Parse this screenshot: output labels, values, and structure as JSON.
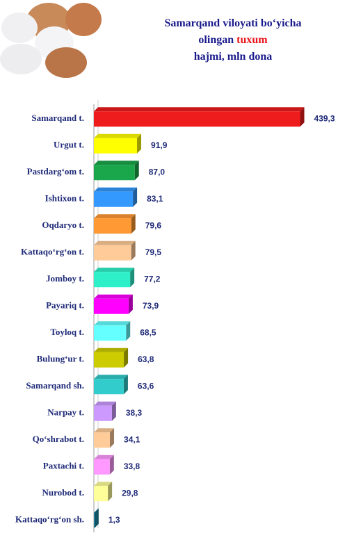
{
  "chart_data": {
    "type": "bar3d_horizontal",
    "title": {
      "line1": "Samarqand viloyati bo‘yicha",
      "line2": "olingan",
      "highlight": "tuxum",
      "line3": "hajmi, mln dona"
    },
    "highlight_color": "#e8141a",
    "categories": [
      "Samarqand t.",
      "Urgut t.",
      "Pastdarg‘om t.",
      "Ishtixon t.",
      "Oqdaryo t.",
      "Kattaqo‘rg‘on t.",
      "Jomboy t.",
      "Payariq t.",
      "Toyloq t.",
      "Bulung‘ur t.",
      "Samarqand sh.",
      "Narpay t.",
      "Qo‘shrabot t.",
      "Paxtachi t.",
      "Nurobod t.",
      "Kattaqo‘rg‘on sh."
    ],
    "values": [
      439.3,
      91.9,
      87.0,
      83.1,
      79.6,
      79.5,
      77.2,
      73.9,
      68.5,
      63.8,
      63.6,
      38.3,
      34.1,
      33.8,
      29.8,
      1.3
    ],
    "value_labels": [
      "439,3",
      "91,9",
      "87,0",
      "83,1",
      "79,6",
      "79,5",
      "77,2",
      "73,9",
      "68,5",
      "63,8",
      "63,6",
      "38,3",
      "34,1",
      "33,8",
      "29,8",
      "1,3"
    ],
    "colors": [
      "#ee1c1c",
      "#ffff00",
      "#1aa64a",
      "#3399ff",
      "#ff9933",
      "#ffcc99",
      "#2ef0c8",
      "#ff00ff",
      "#66ffff",
      "#cccc00",
      "#33cccc",
      "#cc99ff",
      "#ffcc99",
      "#ff99ff",
      "#ffff99",
      "#1a8aa6"
    ],
    "xlim": [
      0,
      440
    ]
  }
}
